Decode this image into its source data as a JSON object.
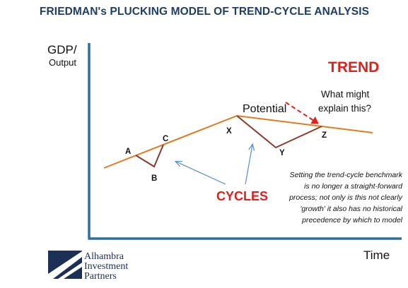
{
  "header": {
    "title": "FRIEDMAN's PLUCKING MODEL OF TREND-CYCLE ANALYSIS"
  },
  "axes": {
    "y_label_line1": "GDP/",
    "y_label_line2": "Output",
    "x_label": "Time"
  },
  "labels": {
    "trend": "TREND",
    "question_line1": "What might",
    "question_line2": "explain this?",
    "potential": "Potential",
    "cycles": "CYCLES"
  },
  "points": [
    {
      "id": "A",
      "label": "A"
    },
    {
      "id": "B",
      "label": "B"
    },
    {
      "id": "C",
      "label": "C"
    },
    {
      "id": "X",
      "label": "X"
    },
    {
      "id": "Y",
      "label": "Y"
    },
    {
      "id": "Z",
      "label": "Z"
    }
  ],
  "note": {
    "lines": [
      "Setting the trend-cycle benchmark",
      "is no longer a straight-forward",
      "process; not only is this not clearly",
      "'growth' it also has no historical",
      "precedence  by which to model"
    ]
  },
  "logo": {
    "line1": "Alhambra",
    "line2": "Investment",
    "line3": "Partners"
  },
  "colors": {
    "title": "#1f3d66",
    "axis": "#2f6f9e",
    "trend_line": "#e07b20",
    "cycle_line": "#8b3a2a",
    "accent_red": "#e0201b",
    "arrow_blue": "#5b8fc9",
    "logo_navy": "#1c2f55"
  }
}
